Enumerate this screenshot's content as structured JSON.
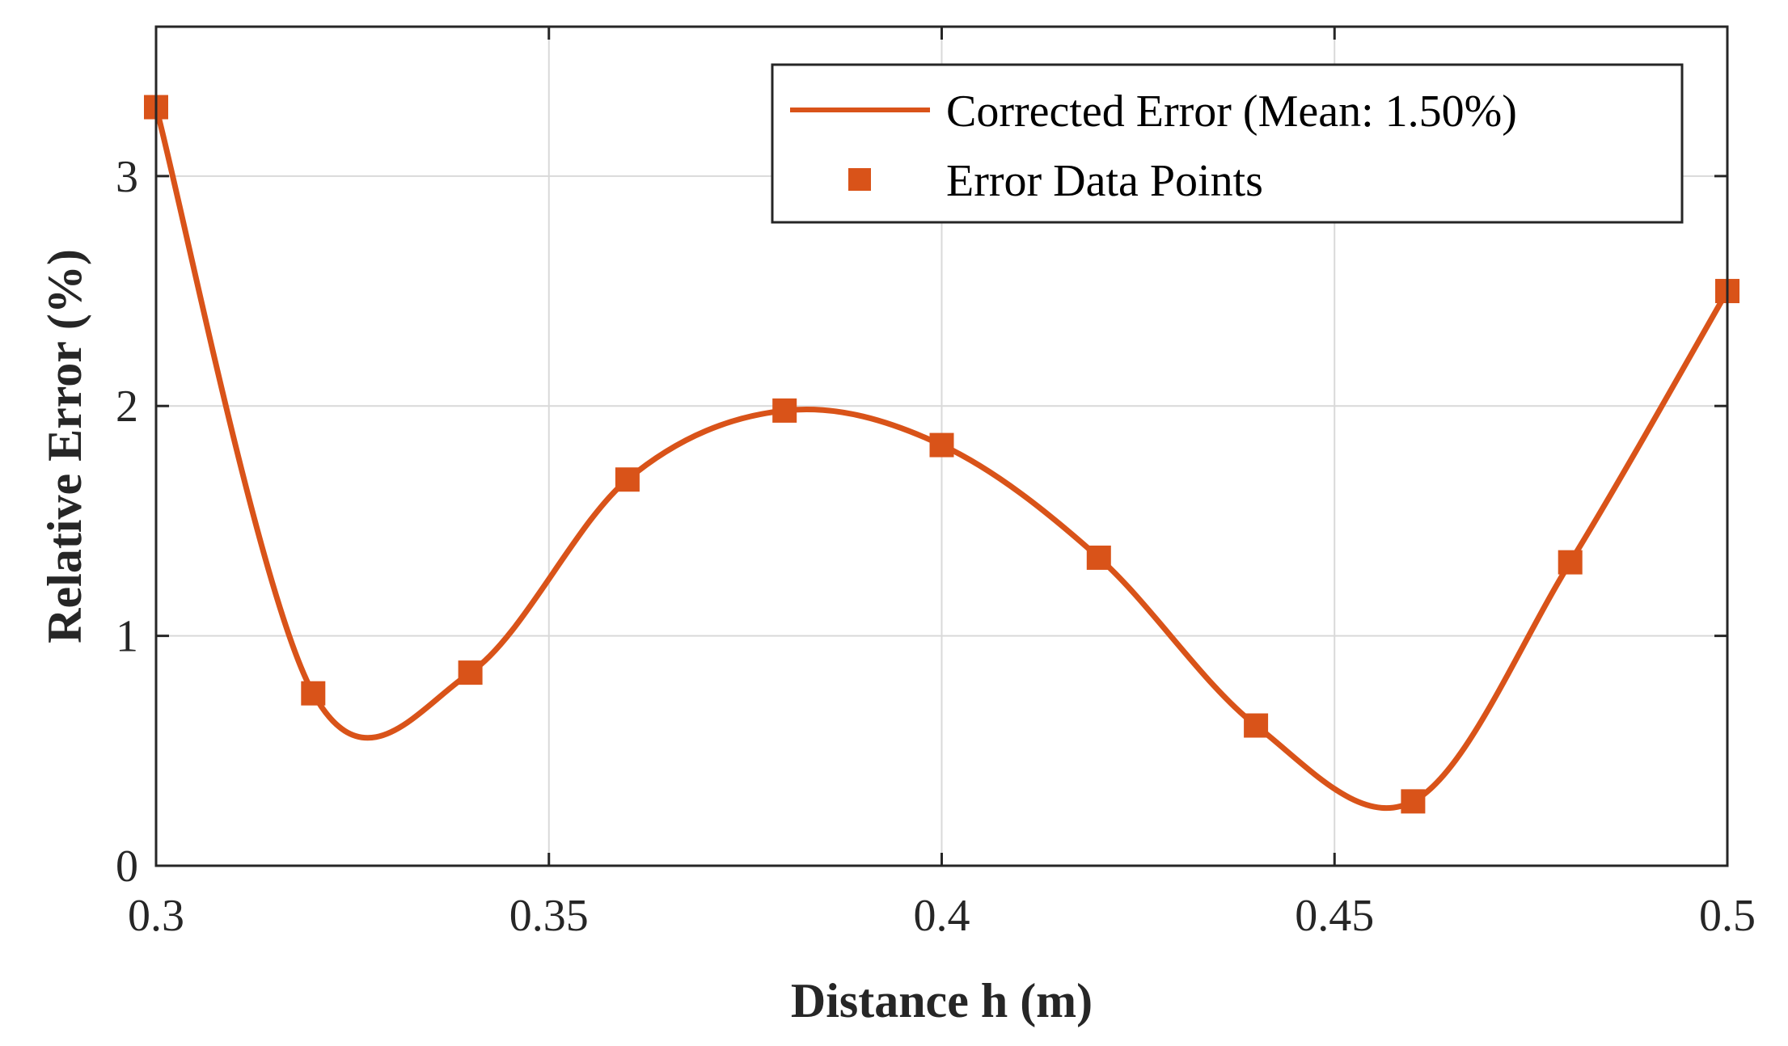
{
  "chart_data": {
    "type": "line",
    "xlabel": "Distance h (m)",
    "ylabel": "Relative Error (%)",
    "xlim": [
      0.3,
      0.5
    ],
    "ylim": [
      0,
      3.65
    ],
    "x_ticks": [
      0.3,
      0.35,
      0.4,
      0.45,
      0.5
    ],
    "x_tick_labels": [
      "0.3",
      "0.35",
      "0.4",
      "0.45",
      "0.5"
    ],
    "y_ticks": [
      0,
      1,
      2,
      3
    ],
    "y_tick_labels": [
      "0",
      "1",
      "2",
      "3"
    ],
    "grid": true,
    "legend_position": "top-right",
    "x": [
      0.3,
      0.32,
      0.34,
      0.36,
      0.38,
      0.4,
      0.42,
      0.44,
      0.46,
      0.48,
      0.5
    ],
    "series": [
      {
        "name": "Corrected Error (Mean: 1.50%)",
        "style": "line",
        "color": "#D95319",
        "values": [
          3.3,
          0.75,
          0.84,
          1.68,
          1.98,
          1.83,
          1.34,
          0.61,
          0.28,
          1.32,
          2.5
        ]
      },
      {
        "name": "Error Data Points",
        "style": "markers",
        "marker": "square",
        "color": "#D95319",
        "values": [
          3.3,
          0.75,
          0.84,
          1.68,
          1.98,
          1.83,
          1.34,
          0.61,
          0.28,
          1.32,
          2.5
        ]
      }
    ],
    "colors": {
      "series": "#D95319",
      "grid": "#d9d9d9",
      "axis": "#262626"
    }
  }
}
